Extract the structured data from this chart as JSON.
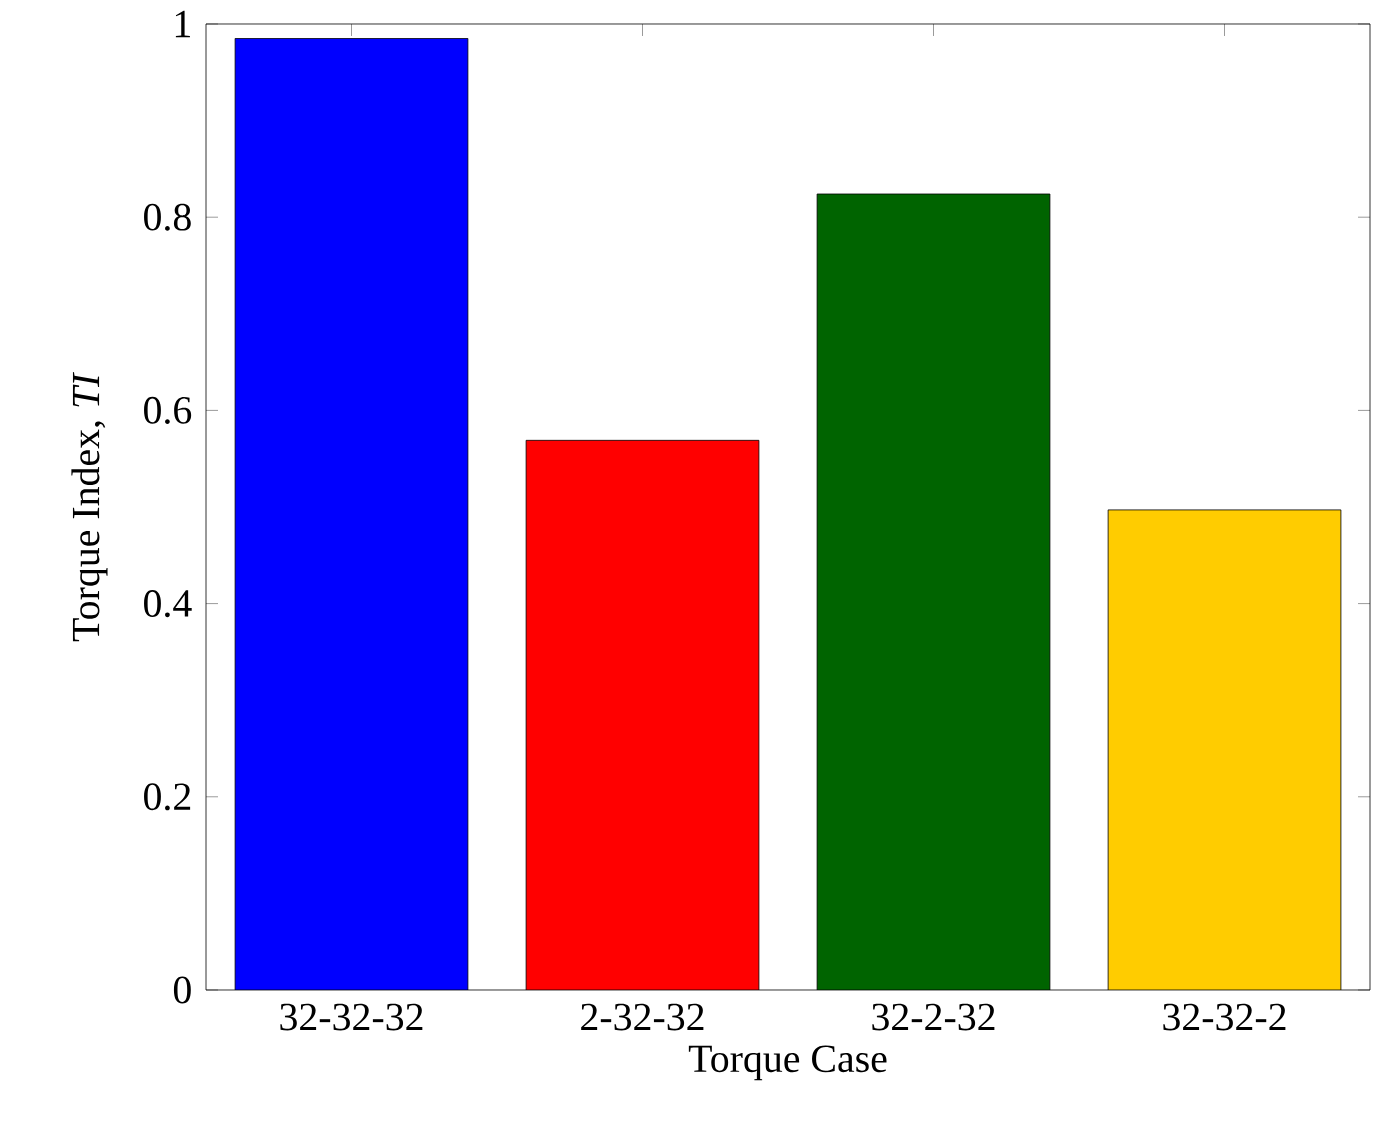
{
  "chart_data": {
    "type": "bar",
    "xlabel": "Torque Case",
    "ylabel": "Torque Index, *TI*",
    "categories": [
      "32-32-32",
      "2-32-32",
      "32-2-32",
      "32-32-2"
    ],
    "values": [
      0.985,
      0.569,
      0.824,
      0.497
    ],
    "colors": [
      "#0000ff",
      "#ff0000",
      "#006400",
      "#ffcc00"
    ],
    "ylim": [
      0,
      1
    ],
    "yticks": [
      0,
      0.2,
      0.4,
      0.6,
      0.8,
      1
    ],
    "grid": false
  }
}
